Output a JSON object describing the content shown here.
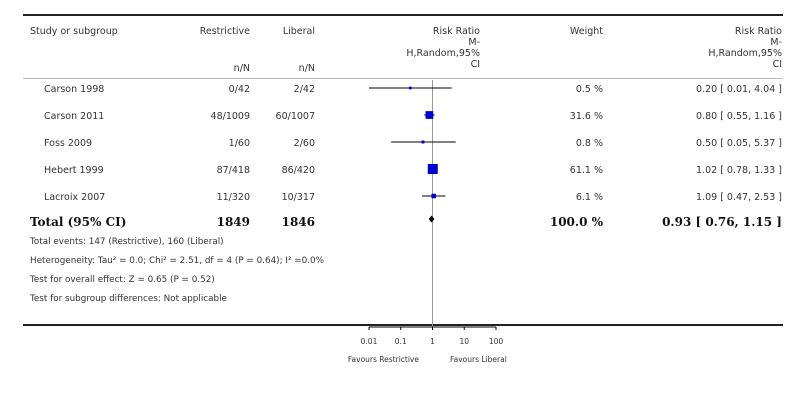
{
  "chart_data": {
    "type": "forest",
    "columns": {
      "study": "Study or subgroup",
      "restrictive": "Restrictive",
      "liberal": "Liberal",
      "plot_header": [
        "Risk Ratio",
        "M-",
        "H,Random,95%",
        "CI"
      ],
      "weight": "Weight",
      "ci_header": [
        "Risk Ratio",
        "M-",
        "H,Random,95%",
        "CI"
      ],
      "restrictive_sub": "n/N",
      "liberal_sub": "n/N"
    },
    "studies": [
      {
        "name": "Carson 1998",
        "restrictive": "0/42",
        "liberal": "2/42",
        "weight": "0.5 %",
        "ci_text": "0.20 [ 0.01, 4.04 ]",
        "rr": 0.2,
        "lo": 0.01,
        "hi": 4.04,
        "w": 0.5
      },
      {
        "name": "Carson 2011",
        "restrictive": "48/1009",
        "liberal": "60/1007",
        "weight": "31.6 %",
        "ci_text": "0.80 [ 0.55, 1.16 ]",
        "rr": 0.8,
        "lo": 0.55,
        "hi": 1.16,
        "w": 31.6
      },
      {
        "name": "Foss 2009",
        "restrictive": "1/60",
        "liberal": "2/60",
        "weight": "0.8 %",
        "ci_text": "0.50 [ 0.05, 5.37 ]",
        "rr": 0.5,
        "lo": 0.05,
        "hi": 5.37,
        "w": 0.8
      },
      {
        "name": "Hebert 1999",
        "restrictive": "87/418",
        "liberal": "86/420",
        "weight": "61.1 %",
        "ci_text": "1.02 [ 0.78, 1.33 ]",
        "rr": 1.02,
        "lo": 0.78,
        "hi": 1.33,
        "w": 61.1
      },
      {
        "name": "Lacroix 2007",
        "restrictive": "11/320",
        "liberal": "10/317",
        "weight": "6.1 %",
        "ci_text": "1.09 [ 0.47, 2.53 ]",
        "rr": 1.09,
        "lo": 0.47,
        "hi": 2.53,
        "w": 6.1
      }
    ],
    "total": {
      "name": "Total (95% CI)",
      "restrictive": "1849",
      "liberal": "1846",
      "weight": "100.0 %",
      "ci_text": "0.93 [ 0.76, 1.15 ]",
      "rr": 0.93,
      "lo": 0.76,
      "hi": 1.15
    },
    "footnotes": {
      "events": "Total events: 147 (Restrictive), 160 (Liberal)",
      "heterogeneity": "Heterogeneity: Tau² = 0.0; Chi² = 2.51, df = 4 (P = 0.64); I² =0.0%",
      "overall": "Test for overall effect: Z = 0.65 (P = 0.52)",
      "subgroup": "Test for subgroup differences: Not applicable"
    },
    "x_axis": {
      "scale": "log",
      "range": [
        0.01,
        100
      ],
      "ticks": [
        0.01,
        0.1,
        1,
        10,
        100
      ],
      "tick_labels": [
        "0.01",
        "0.1",
        "1",
        "10",
        "100"
      ]
    },
    "favours_left": "Favours Restrictive",
    "favours_right": "Favours Liberal",
    "colors": {
      "marker": "#0000cc",
      "diamond": "#000000",
      "line": "#000000",
      "vline": "#999999"
    }
  }
}
